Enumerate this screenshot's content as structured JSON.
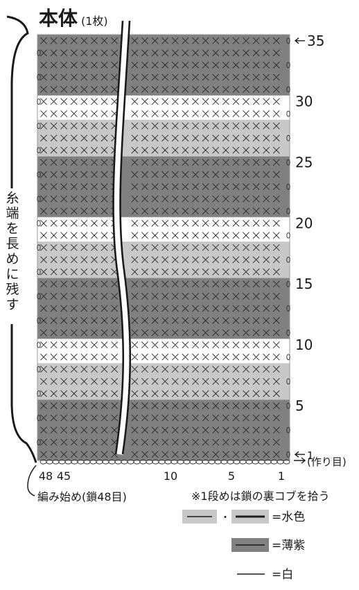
{
  "title": {
    "main": "本体",
    "sub": "(1枚)"
  },
  "side_note": [
    "糸",
    "端",
    "を",
    "長",
    "め",
    "に",
    "残",
    "す"
  ],
  "row_labels": [
    {
      "text": "35",
      "row": 35,
      "arrow": true
    },
    {
      "text": "30",
      "row": 30
    },
    {
      "text": "25",
      "row": 25
    },
    {
      "text": "20",
      "row": 20
    },
    {
      "text": "15",
      "row": 15
    },
    {
      "text": "10",
      "row": 10
    },
    {
      "text": "5",
      "row": 5
    },
    {
      "text": "1",
      "row": 1,
      "arrow": true
    }
  ],
  "chain_label": "(作り目)",
  "stitch_labels": [
    {
      "text": "48",
      "col": 48
    },
    {
      "text": "45",
      "col": 45
    },
    {
      "text": "10",
      "col": 10
    },
    {
      "text": "5",
      "col": 5
    },
    {
      "text": "1",
      "col": 1
    }
  ],
  "start_note": "編み始め(鎖48目)",
  "first_row_note": "※1段めは鎖の裏コブを拾う",
  "legend": [
    {
      "text": "=水色",
      "colors": [
        "#c8c8c8",
        "#c8c8c8"
      ],
      "separator": "・"
    },
    {
      "text": "=薄紫",
      "colors": [
        "#808080"
      ]
    },
    {
      "text": "=白",
      "colors": [
        "#ffffff"
      ]
    }
  ],
  "colors": {
    "light": "#c8c8c8",
    "dark": "#808080",
    "white": "#ffffff",
    "ink": "#1a1a1a"
  },
  "bands": [
    {
      "from": 1,
      "to": 5,
      "color": "dark"
    },
    {
      "from": 6,
      "to": 8,
      "color": "light"
    },
    {
      "from": 9,
      "to": 10,
      "color": "white"
    },
    {
      "from": 11,
      "to": 15,
      "color": "dark"
    },
    {
      "from": 16,
      "to": 18,
      "color": "light"
    },
    {
      "from": 19,
      "to": 20,
      "color": "white"
    },
    {
      "from": 21,
      "to": 25,
      "color": "dark"
    },
    {
      "from": 26,
      "to": 28,
      "color": "light"
    },
    {
      "from": 29,
      "to": 30,
      "color": "white"
    },
    {
      "from": 31,
      "to": 35,
      "color": "dark"
    }
  ],
  "rows_total": 35,
  "stitches_total": 48
}
